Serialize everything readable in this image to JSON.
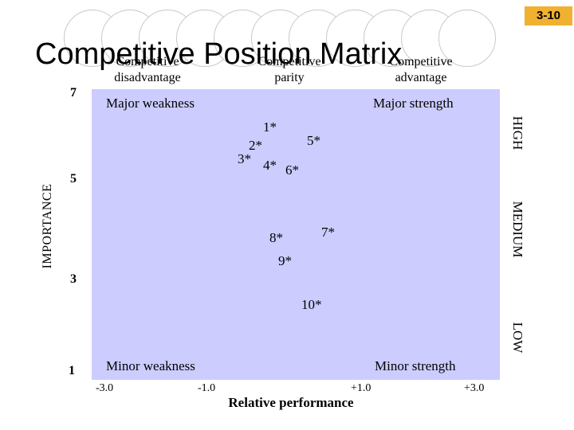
{
  "slide_number": "3-10",
  "title": "Competitive Position Matrix",
  "columns": [
    {
      "line1": "Competitive",
      "line2": "disadvantage"
    },
    {
      "line1": "Competitive",
      "line2": "parity"
    },
    {
      "line1": "Competitive",
      "line2": "advantage"
    }
  ],
  "corners": {
    "top_left": "Major weakness",
    "top_right": "Major strength",
    "bottom_left": "Minor weakness",
    "bottom_right": "Minor strength"
  },
  "importance_levels": [
    "HIGH",
    "MEDIUM",
    "LOW"
  ],
  "y_axis_label": "IMPORTANCE",
  "y_ticks": [
    "7",
    "5",
    "3",
    "1"
  ],
  "x_axis_label": "Relative performance",
  "x_ticks": [
    "-3.0",
    "-1.0",
    "+1.0",
    "+3.0"
  ],
  "chart_data": {
    "type": "scatter",
    "xlabel": "Relative performance",
    "ylabel": "IMPORTANCE",
    "xlim": [
      -3.0,
      3.0
    ],
    "ylim": [
      1,
      7
    ],
    "points": [
      {
        "label": "1*",
        "x": 0.1,
        "y": 6.0
      },
      {
        "label": "2*",
        "x": -0.2,
        "y": 5.6
      },
      {
        "label": "3*",
        "x": -0.5,
        "y": 5.4
      },
      {
        "label": "4*",
        "x": 0.0,
        "y": 5.4
      },
      {
        "label": "5*",
        "x": 0.6,
        "y": 5.8
      },
      {
        "label": "6*",
        "x": 0.3,
        "y": 5.3
      },
      {
        "label": "7*",
        "x": 0.7,
        "y": 4.0
      },
      {
        "label": "8*",
        "x": 0.0,
        "y": 3.9
      },
      {
        "label": "9*",
        "x": 0.1,
        "y": 3.5
      },
      {
        "label": "10*",
        "x": 0.4,
        "y": 2.8
      }
    ]
  }
}
